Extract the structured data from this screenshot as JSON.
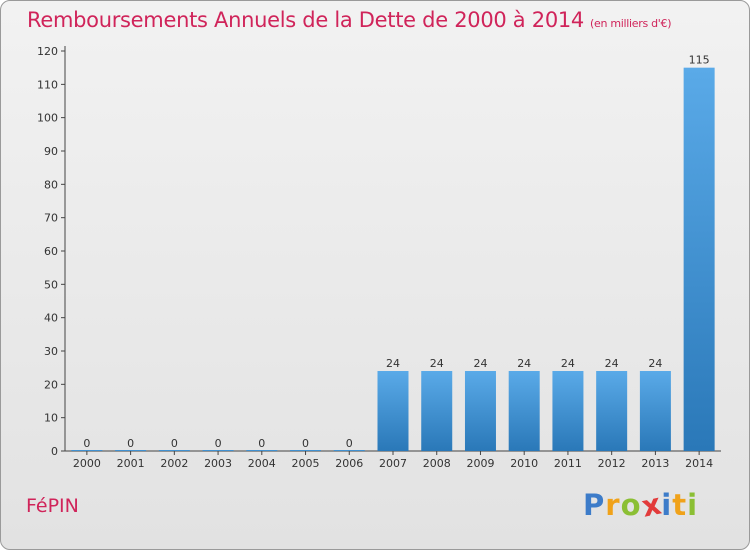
{
  "title": "Remboursements Annuels de la Dette de 2000 à 2014",
  "unit_note": "(en milliers d'€)",
  "place": "FéPIN",
  "logo": {
    "letters": [
      {
        "ch": "P",
        "color": "#3d7cc9"
      },
      {
        "ch": "r",
        "color": "#f0a21a"
      },
      {
        "ch": "o",
        "color": "#8bbf34"
      },
      {
        "ch": "x",
        "color": "#e23b3b"
      },
      {
        "ch": "i",
        "color": "#3d7cc9"
      },
      {
        "ch": "t",
        "color": "#f0a21a"
      },
      {
        "ch": "i",
        "color": "#8bbf34"
      }
    ]
  },
  "chart_data": {
    "type": "bar",
    "categories": [
      "2000",
      "2001",
      "2002",
      "2003",
      "2004",
      "2005",
      "2006",
      "2007",
      "2008",
      "2009",
      "2010",
      "2011",
      "2012",
      "2013",
      "2014"
    ],
    "values": [
      0,
      0,
      0,
      0,
      0,
      0,
      0,
      24,
      24,
      24,
      24,
      24,
      24,
      24,
      115
    ],
    "ylim": [
      0,
      120
    ],
    "yticks": [
      0,
      10,
      20,
      30,
      40,
      50,
      60,
      70,
      80,
      90,
      100,
      110,
      120
    ],
    "grid": false,
    "bar_color_top": "#5aaae8",
    "bar_color_bottom": "#2a78b8",
    "title_color": "#d0245a"
  }
}
